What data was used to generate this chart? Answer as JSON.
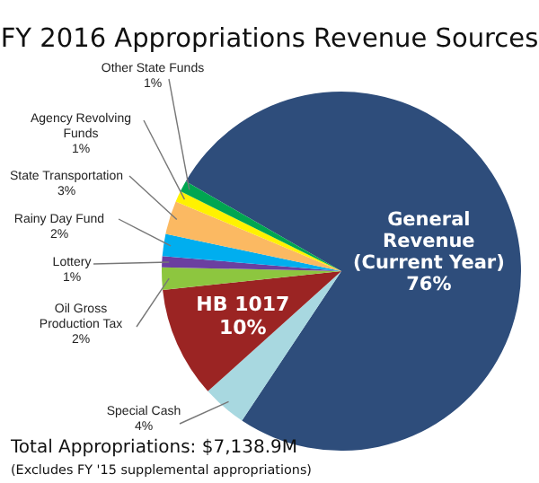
{
  "chart_data": {
    "type": "pie",
    "title": "FY 2016 Appropriations Revenue Sources",
    "categories": [
      "General Revenue (Current Year)",
      "Special Cash",
      "HB 1017",
      "Oil Gross Production Tax",
      "Lottery",
      "Rainy Day Fund",
      "State Transportation",
      "Agency Revolving Funds",
      "Other State Funds"
    ],
    "values": [
      76,
      4,
      10,
      2,
      1,
      2,
      3,
      1,
      1
    ],
    "value_labels": [
      "76%",
      "4%",
      "10%",
      "2%",
      "1%",
      "2%",
      "3%",
      "1%",
      "1%"
    ],
    "colors": [
      "#2e4d7b",
      "#a8d8e0",
      "#9b2423",
      "#8dc63f",
      "#6b3fa0",
      "#00aeef",
      "#fbb962",
      "#fff200",
      "#00a651"
    ],
    "annotations": [
      "Total Appropriations: $7,138.9M",
      "(Excludes FY '15 supplemental appropriations)"
    ]
  }
}
